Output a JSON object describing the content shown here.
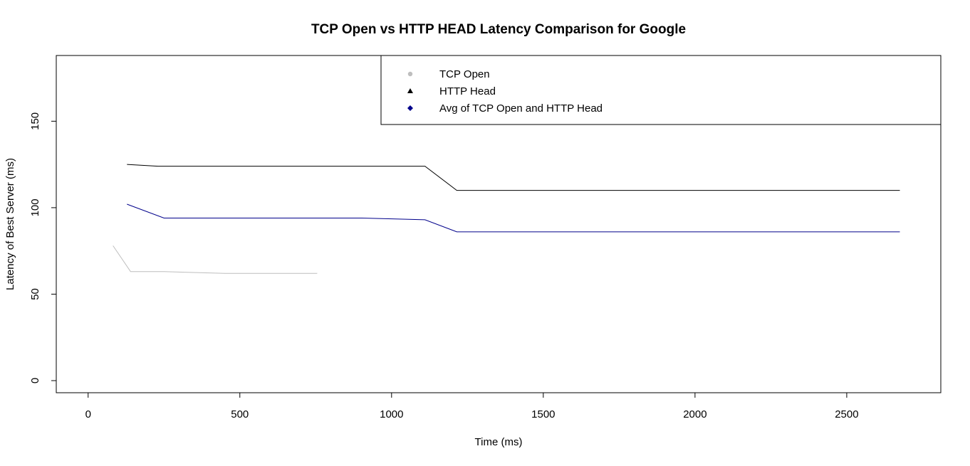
{
  "chart_data": {
    "type": "line",
    "title": "TCP Open vs HTTP HEAD Latency Comparison for Google",
    "xlabel": "Time (ms)",
    "ylabel": "Latency of Best Server (ms)",
    "xlim": [
      -105,
      2810
    ],
    "ylim": [
      -7,
      188
    ],
    "xticks": [
      0,
      500,
      1000,
      1500,
      2000,
      2500
    ],
    "yticks": [
      0,
      50,
      100,
      150
    ],
    "xtick_labels": [
      "0",
      "500",
      "1000",
      "1500",
      "2000",
      "2500"
    ],
    "ytick_labels": [
      "0",
      "50",
      "100",
      "150"
    ],
    "grid": false,
    "legend_position": "top-right",
    "series": [
      {
        "name": "TCP Open",
        "color": "#bebebe",
        "marker": "circle",
        "x": [
          82,
          140,
          250,
          450,
          755
        ],
        "y": [
          78,
          63,
          63,
          62,
          62
        ]
      },
      {
        "name": "HTTP Head",
        "color": "#000000",
        "marker": "triangle",
        "x": [
          128,
          230,
          1110,
          1215,
          2675
        ],
        "y": [
          125,
          124,
          124,
          110,
          110
        ]
      },
      {
        "name": "Avg of TCP Open and HTTP Head",
        "color": "#00008b",
        "marker": "diamond",
        "x": [
          128,
          250,
          900,
          1110,
          1215,
          2675
        ],
        "y": [
          102,
          94,
          94,
          93,
          86,
          86
        ]
      }
    ]
  }
}
